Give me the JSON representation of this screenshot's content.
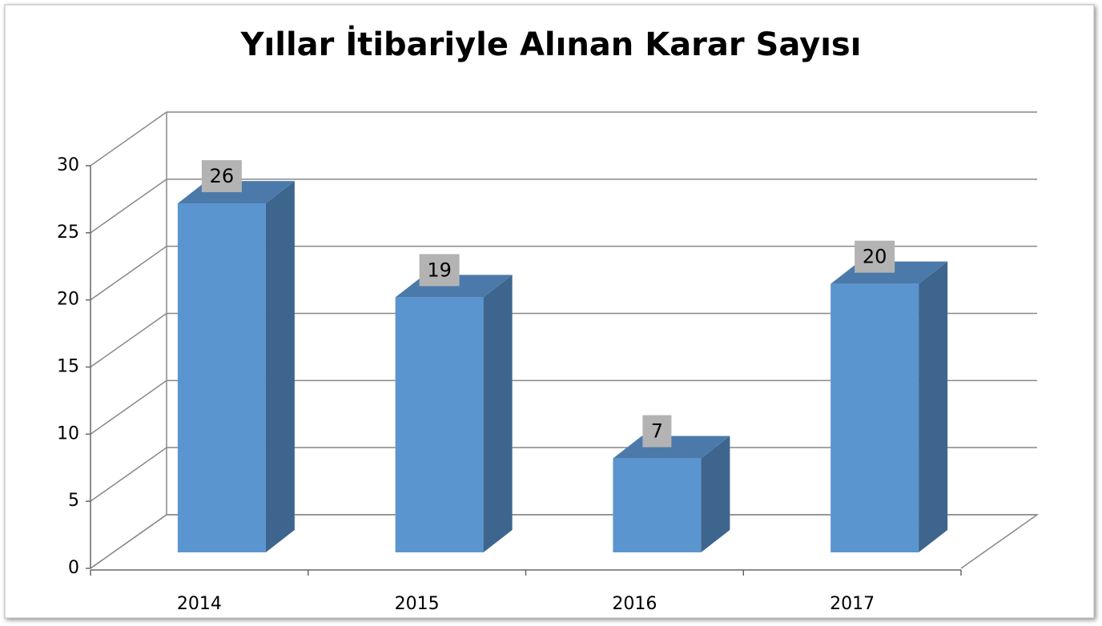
{
  "chart_data": {
    "type": "bar3d",
    "title": "Yıllar İtibariyle Alınan Karar Sayısı",
    "categories": [
      "2014",
      "2015",
      "2016",
      "2017"
    ],
    "values": [
      26,
      19,
      7,
      20
    ],
    "color": "#5b95cf",
    "ylim": [
      0,
      30
    ],
    "yticks": [
      0,
      5,
      10,
      15,
      20,
      25,
      30
    ],
    "grid": true,
    "data_labels": true
  }
}
